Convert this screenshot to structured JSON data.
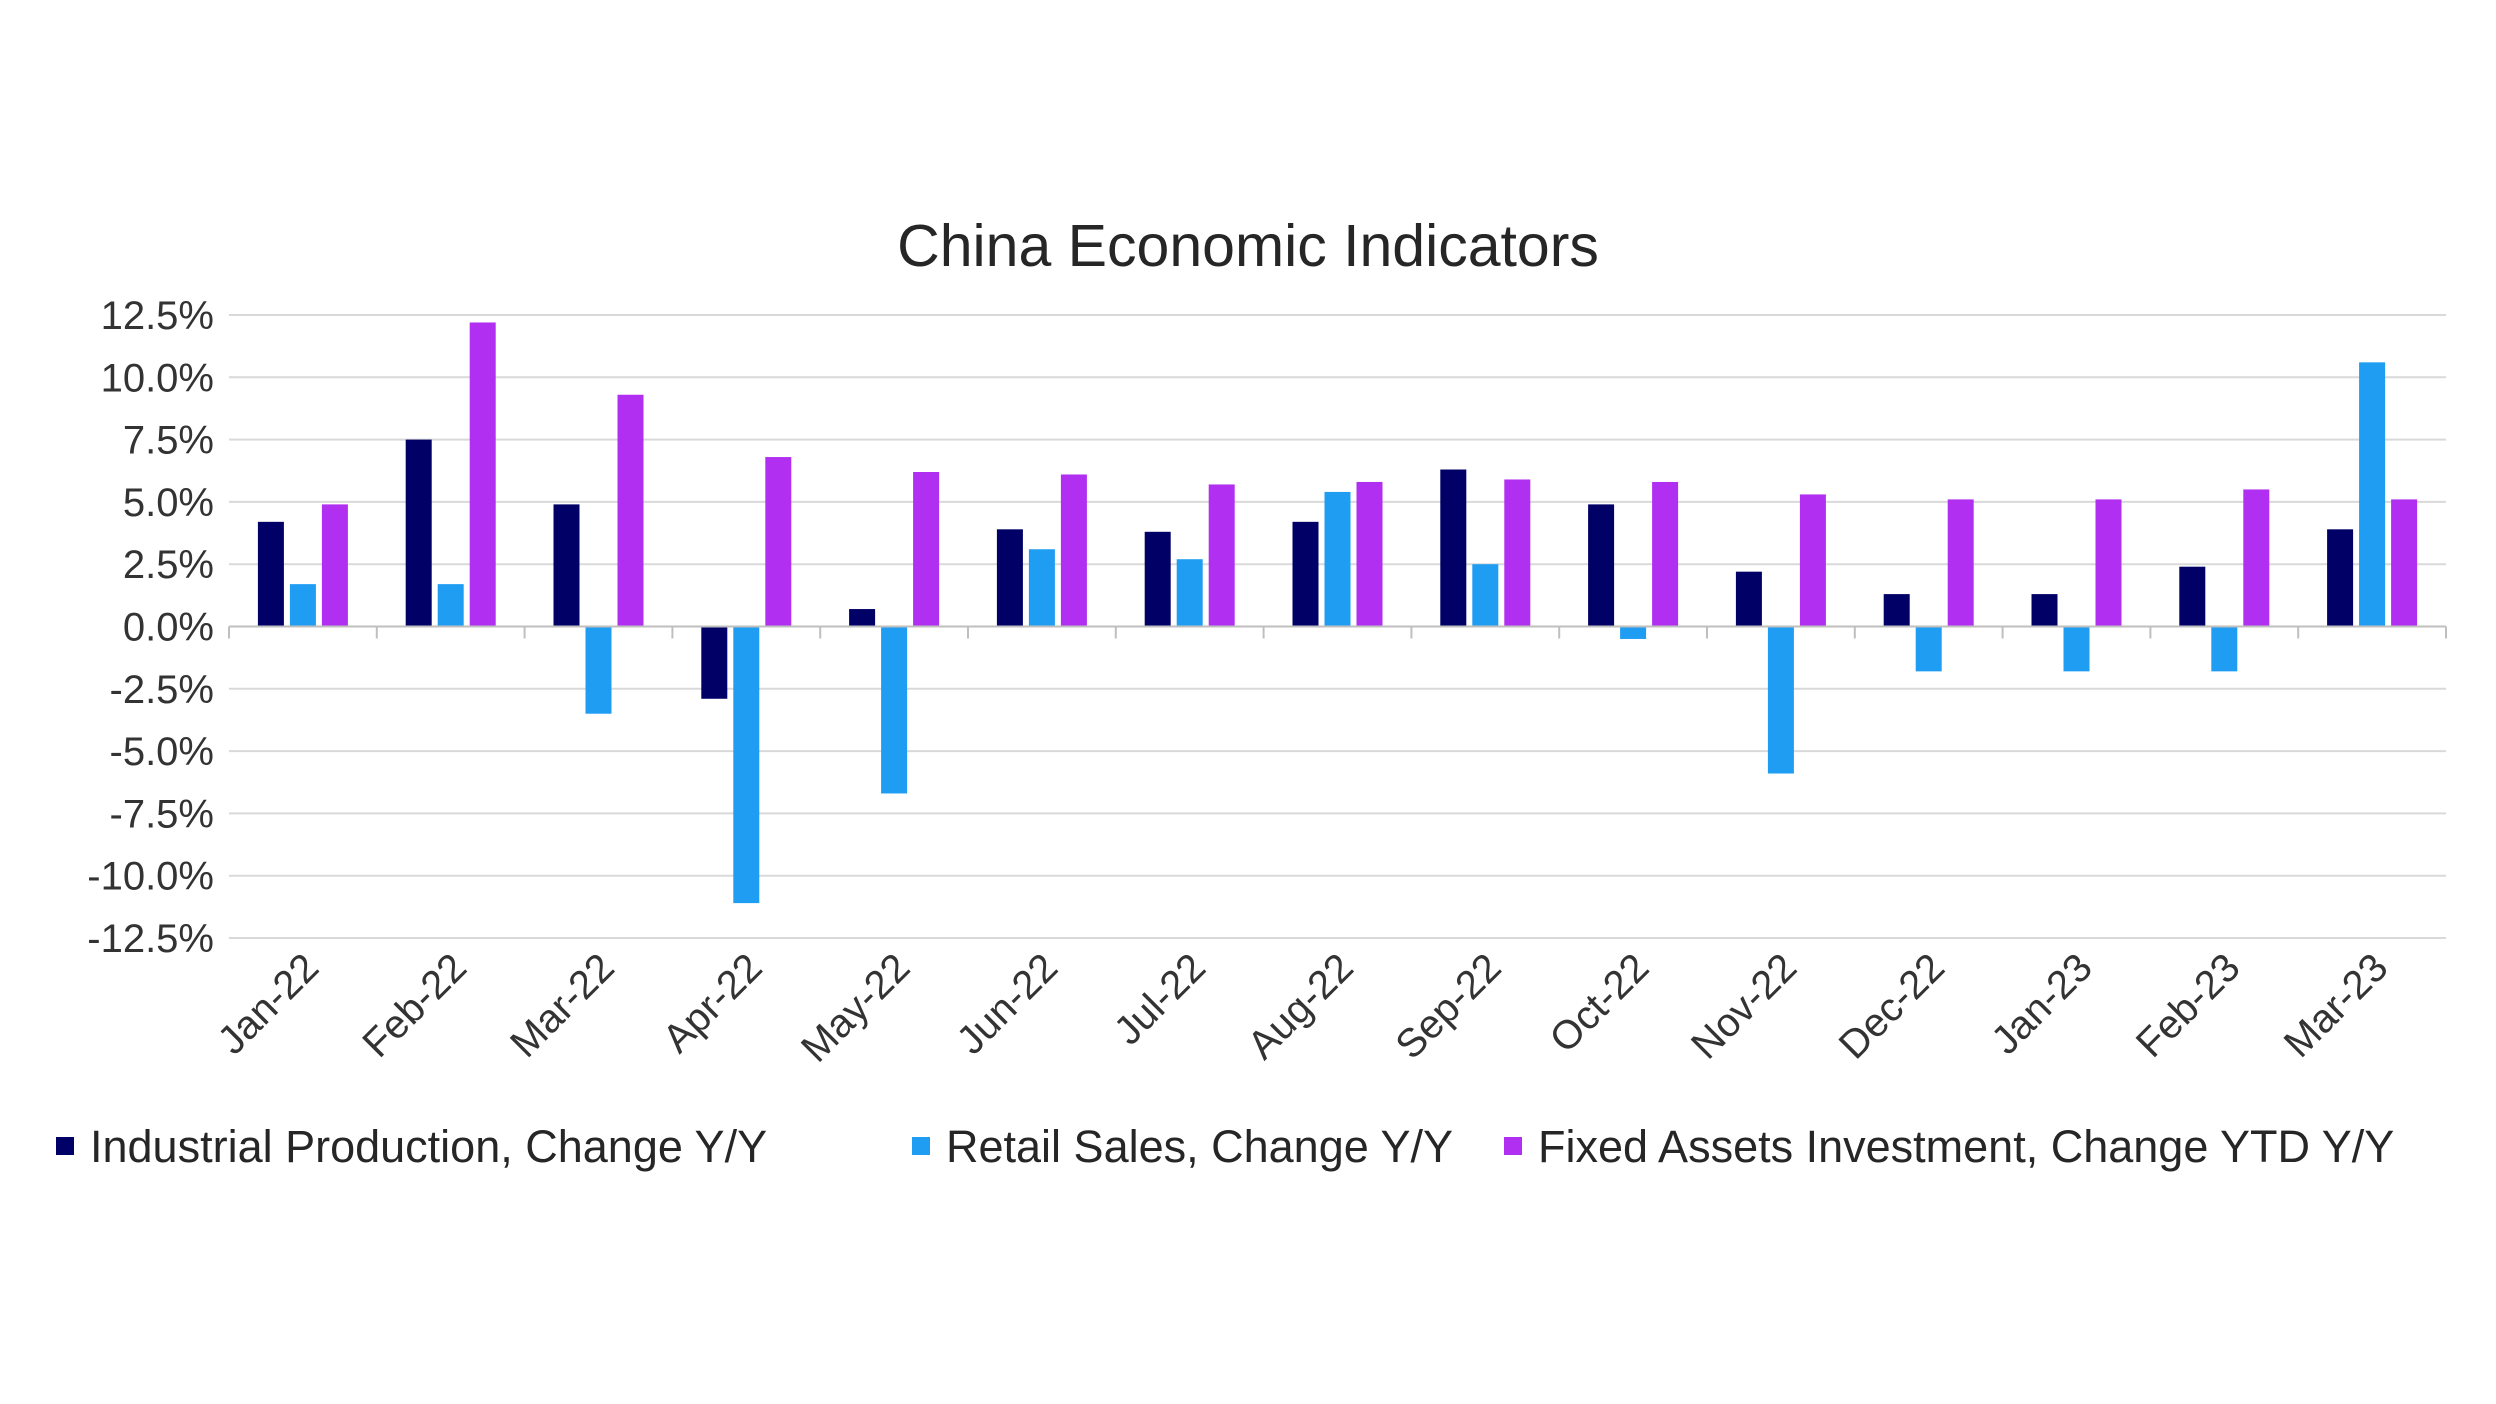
{
  "chart_data": {
    "type": "bar",
    "title": "China Economic Indicators",
    "xlabel": "",
    "ylabel": "",
    "categories": [
      "Jan-22",
      "Feb-22",
      "Mar-22",
      "Apr-22",
      "May-22",
      "Jun-22",
      "Jul-22",
      "Aug-22",
      "Sep-22",
      "Oct-22",
      "Nov-22",
      "Dec-22",
      "Jan-23",
      "Feb-23",
      "Mar-23"
    ],
    "series": [
      {
        "name": "Industrial Production, Change Y/Y",
        "color": "#000066",
        "values": [
          4.2,
          7.5,
          4.9,
          -2.9,
          0.7,
          3.9,
          3.8,
          4.2,
          6.3,
          4.9,
          2.2,
          1.3,
          1.3,
          2.4,
          3.9
        ]
      },
      {
        "name": "Retail Sales, Change Y/Y",
        "color": "#1E9DF2",
        "values": [
          1.7,
          1.7,
          -3.5,
          -11.1,
          -6.7,
          3.1,
          2.7,
          5.4,
          2.5,
          -0.5,
          -5.9,
          -1.8,
          -1.8,
          -1.8,
          10.6
        ]
      },
      {
        "name": "Fixed Assets Investment, Change YTD Y/Y",
        "color": "#B12FF0",
        "values": [
          4.9,
          12.2,
          9.3,
          6.8,
          6.2,
          6.1,
          5.7,
          5.8,
          5.9,
          5.8,
          5.3,
          5.1,
          5.1,
          5.5,
          5.1
        ]
      }
    ],
    "ylim": [
      -12.5,
      12.5
    ],
    "yticks": [
      12.5,
      10.0,
      7.5,
      5.0,
      2.5,
      0.0,
      -2.5,
      -5.0,
      -7.5,
      -10.0,
      -12.5
    ],
    "ytick_labels": [
      "12.5%",
      "10.0%",
      "7.5%",
      "5.0%",
      "2.5%",
      "0.0%",
      "-2.5%",
      "-5.0%",
      "-7.5%",
      "-10.0%",
      "-12.5%"
    ],
    "grid": true,
    "legend_position": "bottom"
  }
}
